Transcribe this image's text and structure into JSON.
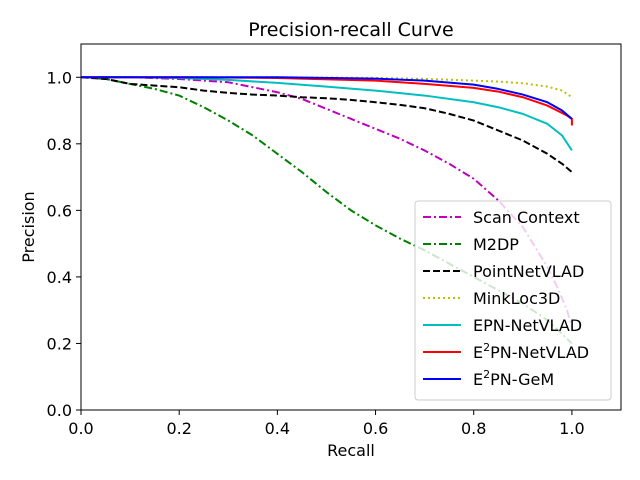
{
  "chart_data": {
    "type": "line",
    "title": "Precision-recall Curve",
    "xlabel": "Recall",
    "ylabel": "Precision",
    "xlim": [
      0.0,
      1.1
    ],
    "ylim": [
      0.0,
      1.1
    ],
    "xticks": [
      {
        "value": 0.0,
        "label": "0.0"
      },
      {
        "value": 0.2,
        "label": "0.2"
      },
      {
        "value": 0.4,
        "label": "0.4"
      },
      {
        "value": 0.6,
        "label": "0.6"
      },
      {
        "value": 0.8,
        "label": "0.8"
      },
      {
        "value": 1.0,
        "label": "1.0"
      }
    ],
    "yticks": [
      {
        "value": 0.0,
        "label": "0.0"
      },
      {
        "value": 0.2,
        "label": "0.2"
      },
      {
        "value": 0.4,
        "label": "0.4"
      },
      {
        "value": 0.6,
        "label": "0.6"
      },
      {
        "value": 0.8,
        "label": "0.8"
      },
      {
        "value": 1.0,
        "label": "1.0"
      }
    ],
    "grid": false,
    "legend_position": "lower-right",
    "series": [
      {
        "name": "Scan Context",
        "legend_label": "Scan Context",
        "color": "#bf00bf",
        "dash": "dashdot",
        "x": [
          0,
          0.1,
          0.2,
          0.3,
          0.35,
          0.4,
          0.45,
          0.5,
          0.55,
          0.6,
          0.65,
          0.7,
          0.75,
          0.8,
          0.85,
          0.9,
          0.95,
          0.97,
          0.99,
          1.0
        ],
        "y": [
          1.0,
          1.0,
          0.995,
          0.985,
          0.97,
          0.955,
          0.935,
          0.905,
          0.875,
          0.845,
          0.815,
          0.78,
          0.74,
          0.695,
          0.63,
          0.55,
          0.43,
          0.37,
          0.3,
          0.25
        ]
      },
      {
        "name": "M2DP",
        "legend_label": "M2DP",
        "color": "#008000",
        "dash": "dashdot",
        "x": [
          0,
          0.05,
          0.1,
          0.15,
          0.2,
          0.25,
          0.3,
          0.35,
          0.4,
          0.45,
          0.5,
          0.55,
          0.6,
          0.65,
          0.7,
          0.75,
          0.8,
          0.85,
          0.9,
          0.95,
          1.0
        ],
        "y": [
          1.0,
          0.995,
          0.98,
          0.965,
          0.945,
          0.91,
          0.87,
          0.825,
          0.77,
          0.715,
          0.655,
          0.6,
          0.555,
          0.515,
          0.48,
          0.44,
          0.4,
          0.36,
          0.32,
          0.27,
          0.2
        ]
      },
      {
        "name": "PointNetVLAD",
        "legend_label": "PointNetVLAD",
        "color": "#000000",
        "dash": "dashed",
        "x": [
          0,
          0.05,
          0.1,
          0.15,
          0.2,
          0.25,
          0.3,
          0.35,
          0.4,
          0.45,
          0.5,
          0.55,
          0.6,
          0.65,
          0.7,
          0.75,
          0.8,
          0.85,
          0.9,
          0.95,
          0.98,
          1.0
        ],
        "y": [
          1.0,
          0.995,
          0.98,
          0.975,
          0.97,
          0.96,
          0.953,
          0.948,
          0.945,
          0.94,
          0.937,
          0.932,
          0.925,
          0.917,
          0.907,
          0.89,
          0.87,
          0.84,
          0.81,
          0.77,
          0.74,
          0.715
        ]
      },
      {
        "name": "MinkLoc3D",
        "legend_label": "MinkLoc3D",
        "color": "#bfbf00",
        "dash": "dotted",
        "x": [
          0,
          0.2,
          0.4,
          0.6,
          0.7,
          0.8,
          0.85,
          0.9,
          0.95,
          0.98,
          1.0
        ],
        "y": [
          1.0,
          1.0,
          1.0,
          0.998,
          0.995,
          0.99,
          0.987,
          0.982,
          0.972,
          0.96,
          0.94
        ]
      },
      {
        "name": "EPN-NetVLAD",
        "legend_label": "EPN-NetVLAD",
        "color": "#00bfbf",
        "dash": "solid",
        "x": [
          0,
          0.1,
          0.2,
          0.3,
          0.4,
          0.5,
          0.6,
          0.7,
          0.8,
          0.85,
          0.9,
          0.95,
          0.98,
          1.0
        ],
        "y": [
          1.0,
          1.0,
          0.998,
          0.992,
          0.983,
          0.972,
          0.96,
          0.945,
          0.925,
          0.91,
          0.89,
          0.86,
          0.825,
          0.78
        ]
      },
      {
        "name": "E2PN-NetVLAD",
        "legend_label": "PN-NetVLAD",
        "legend_prefix": "E",
        "legend_sup": "2",
        "color": "#ff0000",
        "dash": "solid",
        "x": [
          0,
          0.2,
          0.4,
          0.6,
          0.7,
          0.8,
          0.85,
          0.9,
          0.95,
          0.99,
          1.0,
          1.0
        ],
        "y": [
          1.0,
          1.0,
          0.998,
          0.99,
          0.98,
          0.968,
          0.957,
          0.94,
          0.915,
          0.885,
          0.875,
          0.855
        ]
      },
      {
        "name": "E2PN-GeM",
        "legend_label": "PN-GeM",
        "legend_prefix": "E",
        "legend_sup": "2",
        "color": "#0000ff",
        "dash": "solid",
        "x": [
          0,
          0.2,
          0.4,
          0.6,
          0.7,
          0.8,
          0.85,
          0.9,
          0.95,
          0.98,
          1.0
        ],
        "y": [
          1.0,
          1.0,
          1.0,
          0.996,
          0.99,
          0.978,
          0.965,
          0.948,
          0.925,
          0.9,
          0.875
        ]
      }
    ]
  }
}
